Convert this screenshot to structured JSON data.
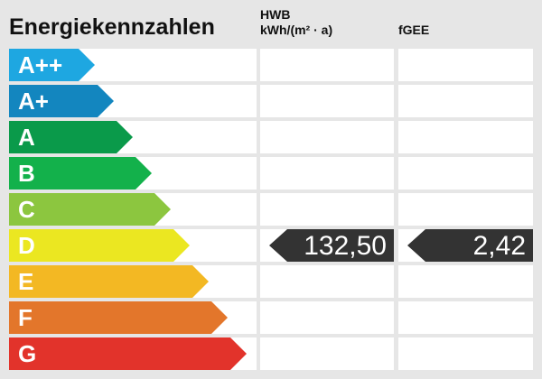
{
  "title": "Energiekennzahlen",
  "columns": {
    "hwb_line1": "HWB",
    "hwb_line2": "kWh/(m² · a)",
    "fgee": "fGEE"
  },
  "classes": [
    {
      "label": "A++",
      "color": "#1ea7e1"
    },
    {
      "label": "A+",
      "color": "#1386bf"
    },
    {
      "label": "A",
      "color": "#0a9a4a"
    },
    {
      "label": "B",
      "color": "#13b14b"
    },
    {
      "label": "C",
      "color": "#8cc63f"
    },
    {
      "label": "D",
      "color": "#ebe721"
    },
    {
      "label": "E",
      "color": "#f3b823"
    },
    {
      "label": "F",
      "color": "#e3762b"
    },
    {
      "label": "G",
      "color": "#e2332b"
    }
  ],
  "current_class": "D",
  "values": {
    "hwb": "132,50",
    "fgee": "2,42"
  },
  "marker_color": "#333333"
}
